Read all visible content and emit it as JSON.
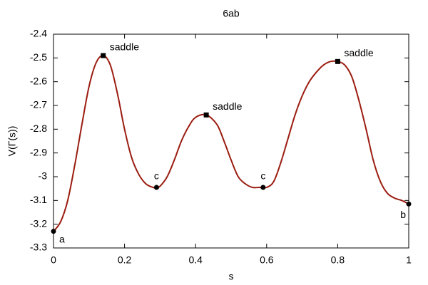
{
  "chart_data": {
    "type": "line",
    "title": "6ab",
    "xlabel": "s",
    "ylabel": "V(Γ(s))",
    "xlim": [
      0,
      1
    ],
    "ylim": [
      -3.3,
      -2.4
    ],
    "xticks": [
      0,
      0.2,
      0.4,
      0.6,
      0.8,
      1
    ],
    "yticks": [
      -3.3,
      -3.2,
      -3.1,
      -3,
      -2.9,
      -2.8,
      -2.7,
      -2.6,
      -2.5,
      -2.4
    ],
    "series": [
      {
        "color": "#9b1c10",
        "x": [
          0,
          0.02,
          0.04,
          0.06,
          0.08,
          0.1,
          0.12,
          0.14,
          0.16,
          0.18,
          0.2,
          0.22,
          0.24,
          0.26,
          0.28,
          0.29,
          0.3,
          0.32,
          0.34,
          0.36,
          0.38,
          0.4,
          0.43,
          0.46,
          0.48,
          0.5,
          0.52,
          0.54,
          0.56,
          0.58,
          0.6,
          0.62,
          0.64,
          0.66,
          0.68,
          0.7,
          0.72,
          0.74,
          0.76,
          0.78,
          0.8,
          0.82,
          0.84,
          0.86,
          0.88,
          0.9,
          0.92,
          0.94,
          0.96,
          0.98,
          1
        ],
        "values": [
          -3.23,
          -3.19,
          -3.1,
          -2.95,
          -2.78,
          -2.62,
          -2.52,
          -2.49,
          -2.53,
          -2.65,
          -2.8,
          -2.92,
          -2.99,
          -3.03,
          -3.045,
          -3.045,
          -3.04,
          -3.0,
          -2.93,
          -2.85,
          -2.79,
          -2.75,
          -2.74,
          -2.78,
          -2.85,
          -2.93,
          -3.0,
          -3.03,
          -3.045,
          -3.045,
          -3.045,
          -3.02,
          -2.94,
          -2.84,
          -2.74,
          -2.66,
          -2.6,
          -2.56,
          -2.53,
          -2.515,
          -2.515,
          -2.53,
          -2.58,
          -2.68,
          -2.8,
          -2.93,
          -3.02,
          -3.07,
          -3.09,
          -3.1,
          -3.115
        ]
      }
    ],
    "points": [
      {
        "x": 0,
        "y": -3.23,
        "label": "a",
        "marker": "circle"
      },
      {
        "x": 0.14,
        "y": -2.49,
        "label": "saddle",
        "marker": "square"
      },
      {
        "x": 0.29,
        "y": -3.045,
        "label": "c",
        "marker": "circle"
      },
      {
        "x": 0.43,
        "y": -2.74,
        "label": "saddle",
        "marker": "square"
      },
      {
        "x": 0.59,
        "y": -3.045,
        "label": "c",
        "marker": "circle"
      },
      {
        "x": 0.8,
        "y": -2.515,
        "label": "saddle",
        "marker": "square"
      },
      {
        "x": 1,
        "y": -3.115,
        "label": "b",
        "marker": "circle"
      }
    ]
  }
}
